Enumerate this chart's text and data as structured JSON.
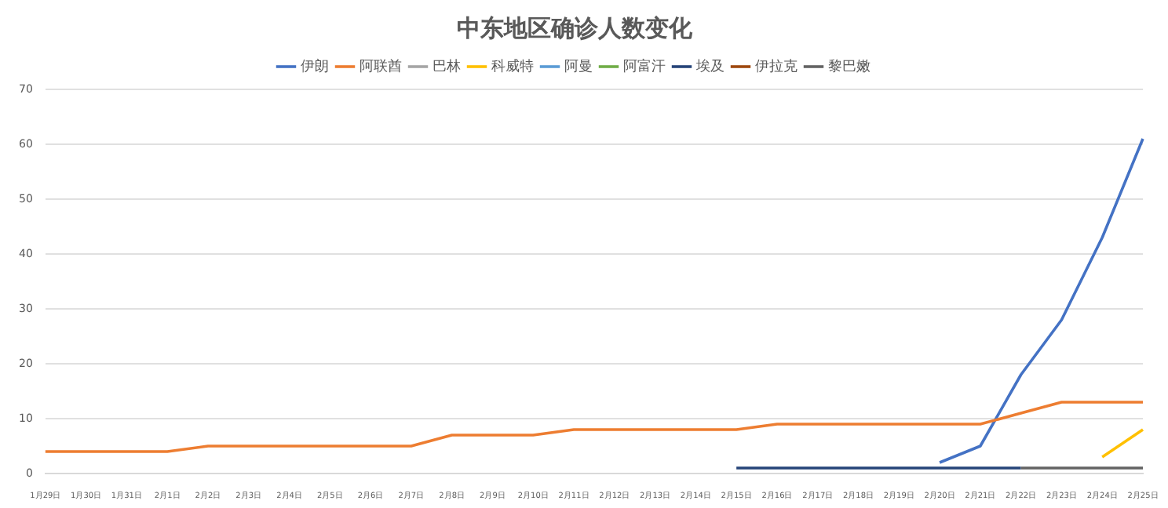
{
  "chart_data": {
    "type": "line",
    "title": "中东地区确诊人数变化",
    "categories": [
      "1月29日",
      "1月30日",
      "1月31日",
      "2月1日",
      "2月2日",
      "2月3日",
      "2月4日",
      "2月5日",
      "2月6日",
      "2月7日",
      "2月8日",
      "2月9日",
      "2月10日",
      "2月11日",
      "2月12日",
      "2月13日",
      "2月14日",
      "2月15日",
      "2月16日",
      "2月17日",
      "2月18日",
      "2月19日",
      "2月20日",
      "2月21日",
      "2月22日",
      "2月23日",
      "2月24日",
      "2月25日"
    ],
    "series": [
      {
        "name": "伊朗",
        "color": "#4472c4",
        "values": [
          null,
          null,
          null,
          null,
          null,
          null,
          null,
          null,
          null,
          null,
          null,
          null,
          null,
          null,
          null,
          null,
          null,
          null,
          null,
          null,
          null,
          null,
          2,
          5,
          18,
          28,
          43,
          61
        ]
      },
      {
        "name": "阿联酋",
        "color": "#ed7d31",
        "values": [
          4,
          4,
          4,
          4,
          5,
          5,
          5,
          5,
          5,
          5,
          7,
          7,
          7,
          8,
          8,
          8,
          8,
          8,
          9,
          9,
          9,
          9,
          9,
          9,
          11,
          13,
          13,
          13
        ]
      },
      {
        "name": "巴林",
        "color": "#a5a5a5",
        "values": [
          null,
          null,
          null,
          null,
          null,
          null,
          null,
          null,
          null,
          null,
          null,
          null,
          null,
          null,
          null,
          null,
          null,
          null,
          null,
          null,
          null,
          null,
          null,
          null,
          null,
          null,
          null,
          null
        ]
      },
      {
        "name": "科威特",
        "color": "#ffc000",
        "values": [
          null,
          null,
          null,
          null,
          null,
          null,
          null,
          null,
          null,
          null,
          null,
          null,
          null,
          null,
          null,
          null,
          null,
          null,
          null,
          null,
          null,
          null,
          null,
          null,
          null,
          null,
          3,
          8
        ]
      },
      {
        "name": "阿曼",
        "color": "#5b9bd5",
        "values": [
          null,
          null,
          null,
          null,
          null,
          null,
          null,
          null,
          null,
          null,
          null,
          null,
          null,
          null,
          null,
          null,
          null,
          null,
          null,
          null,
          null,
          null,
          null,
          null,
          null,
          null,
          null,
          null
        ]
      },
      {
        "name": "阿富汗",
        "color": "#70ad47",
        "values": [
          null,
          null,
          null,
          null,
          null,
          null,
          null,
          null,
          null,
          null,
          null,
          null,
          null,
          null,
          null,
          null,
          null,
          null,
          null,
          null,
          null,
          null,
          null,
          null,
          null,
          null,
          null,
          null
        ]
      },
      {
        "name": "埃及",
        "color": "#264478",
        "values": [
          null,
          null,
          null,
          null,
          null,
          null,
          null,
          null,
          null,
          null,
          null,
          null,
          null,
          null,
          null,
          null,
          null,
          1,
          1,
          1,
          1,
          1,
          1,
          1,
          1,
          null,
          null,
          null
        ]
      },
      {
        "name": "伊拉克",
        "color": "#9e480e",
        "values": [
          null,
          null,
          null,
          null,
          null,
          null,
          null,
          null,
          null,
          null,
          null,
          null,
          null,
          null,
          null,
          null,
          null,
          null,
          null,
          null,
          null,
          null,
          null,
          null,
          null,
          null,
          null,
          null
        ]
      },
      {
        "name": "黎巴嫩",
        "color": "#636363",
        "values": [
          null,
          null,
          null,
          null,
          null,
          null,
          null,
          null,
          null,
          null,
          null,
          null,
          null,
          null,
          null,
          null,
          null,
          null,
          null,
          null,
          null,
          null,
          null,
          null,
          1,
          1,
          1,
          1
        ]
      }
    ],
    "ylim": [
      0,
      70
    ],
    "yticks": [
      0,
      10,
      20,
      30,
      40,
      50,
      60,
      70
    ],
    "grid": "y",
    "legend": "top",
    "marker": "none",
    "line_style": "solid"
  }
}
